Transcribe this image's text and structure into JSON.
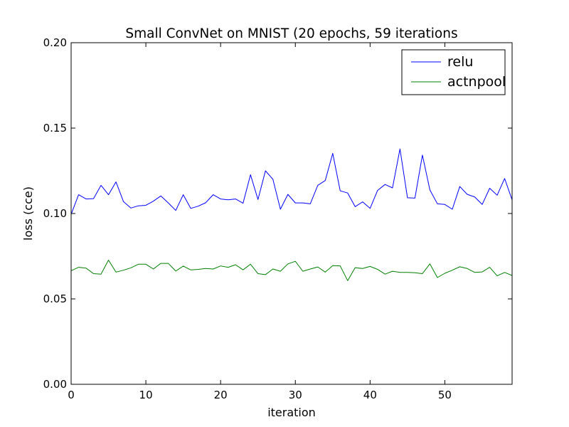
{
  "chart_data": {
    "type": "line",
    "title": "Small ConvNet on MNIST (20 epochs, 59 iterations",
    "xlabel": "iteration",
    "ylabel": "loss (cce)",
    "xlim": [
      0,
      59
    ],
    "ylim": [
      0,
      0.2
    ],
    "xticks": [
      0,
      10,
      20,
      30,
      40,
      50
    ],
    "xtick_labels": [
      "0",
      "10",
      "20",
      "30",
      "40",
      "50"
    ],
    "yticks": [
      0,
      0.05,
      0.1,
      0.15,
      0.2
    ],
    "ytick_labels": [
      "0.00",
      "0.05",
      "0.10",
      "0.15",
      "0.20"
    ],
    "grid": false,
    "legend_position": "top-right",
    "x": [
      0,
      1,
      2,
      3,
      4,
      5,
      6,
      7,
      8,
      9,
      10,
      11,
      12,
      13,
      14,
      15,
      16,
      17,
      18,
      19,
      20,
      21,
      22,
      23,
      24,
      25,
      26,
      27,
      28,
      29,
      30,
      31,
      32,
      33,
      34,
      35,
      36,
      37,
      38,
      39,
      40,
      41,
      42,
      43,
      44,
      45,
      46,
      47,
      48,
      49,
      50,
      51,
      52,
      53,
      54,
      55,
      56,
      57,
      58,
      59
    ],
    "series": [
      {
        "name": "relu",
        "color": "#0000ff",
        "values": [
          0.0995,
          0.111,
          0.1085,
          0.1087,
          0.1165,
          0.111,
          0.1185,
          0.107,
          0.1032,
          0.1045,
          0.1048,
          0.1072,
          0.1103,
          0.1062,
          0.1018,
          0.111,
          0.103,
          0.1043,
          0.1063,
          0.111,
          0.1085,
          0.108,
          0.1085,
          0.106,
          0.1227,
          0.1082,
          0.125,
          0.12,
          0.1025,
          0.1112,
          0.1062,
          0.1062,
          0.1057,
          0.1165,
          0.1193,
          0.1352,
          0.1133,
          0.112,
          0.104,
          0.1068,
          0.103,
          0.1135,
          0.117,
          0.115,
          0.1378,
          0.1092,
          0.109,
          0.1342,
          0.1138,
          0.1057,
          0.1053,
          0.1025,
          0.1158,
          0.1112,
          0.1097,
          0.1053,
          0.1148,
          0.1107,
          0.1205,
          0.108
        ]
      },
      {
        "name": "actnpool",
        "color": "#008000",
        "values": [
          0.0665,
          0.0685,
          0.068,
          0.0648,
          0.0645,
          0.0727,
          0.0657,
          0.0668,
          0.0682,
          0.0703,
          0.0703,
          0.0675,
          0.0708,
          0.0708,
          0.0663,
          0.0692,
          0.067,
          0.0673,
          0.0678,
          0.0675,
          0.0693,
          0.0685,
          0.07,
          0.067,
          0.0703,
          0.0648,
          0.0642,
          0.0675,
          0.0662,
          0.0705,
          0.072,
          0.0662,
          0.0675,
          0.0687,
          0.0657,
          0.0695,
          0.0693,
          0.0607,
          0.0683,
          0.0678,
          0.069,
          0.0673,
          0.0645,
          0.0662,
          0.0655,
          0.0655,
          0.0653,
          0.0648,
          0.0705,
          0.0625,
          0.065,
          0.0668,
          0.0688,
          0.0678,
          0.0655,
          0.0658,
          0.0685,
          0.0635,
          0.0655,
          0.0637
        ]
      }
    ]
  }
}
